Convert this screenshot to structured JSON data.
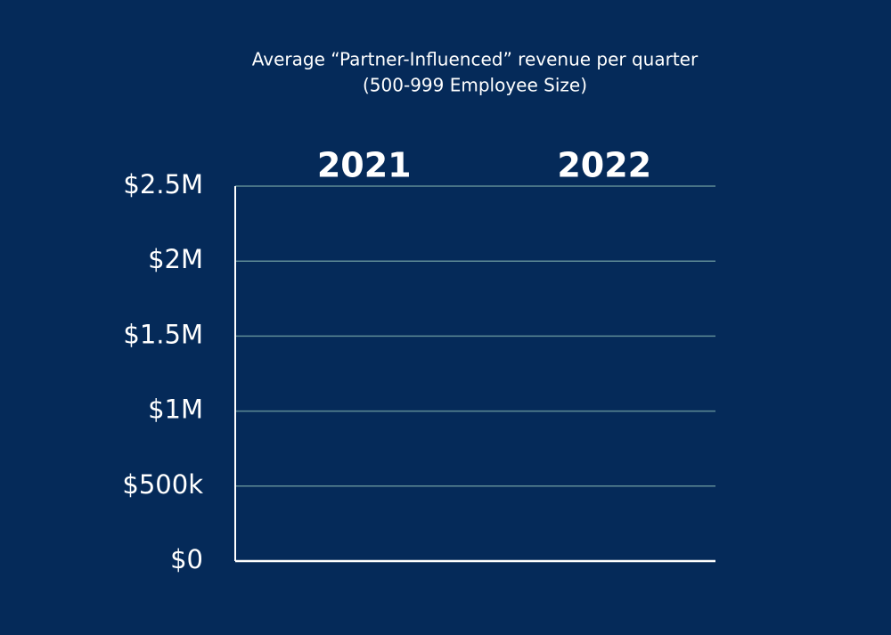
{
  "chart_data": {
    "type": "bar",
    "title": "Average “Partner-Influenced” revenue per quarter",
    "subtitle": "(500-999 Employee Size)",
    "categories": [
      "2021",
      "2022"
    ],
    "ylim": [
      0,
      2500000
    ],
    "yticks": [
      {
        "value": 0,
        "label": "$0"
      },
      {
        "value": 500000,
        "label": "$500k"
      },
      {
        "value": 1000000,
        "label": "$1M"
      },
      {
        "value": 1500000,
        "label": "$1.5M"
      },
      {
        "value": 2000000,
        "label": "$2M"
      },
      {
        "value": 2500000,
        "label": "$2.5M"
      }
    ],
    "grid": true
  }
}
